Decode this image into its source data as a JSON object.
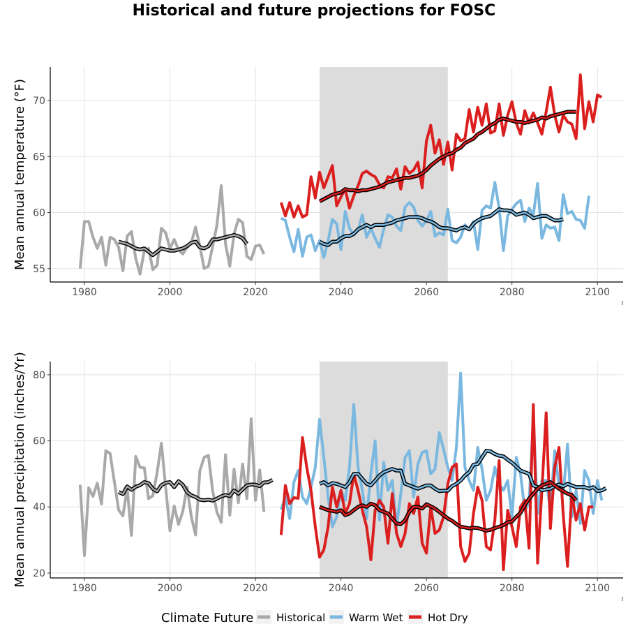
{
  "title": "Historical and future projections for FOSC",
  "colors": {
    "historical": "#A9A9A9",
    "warm_wet": "#7BB8E0",
    "hot_dry": "#DB1F1F",
    "period_shade": "#DCDCDC",
    "smooth": "#000000"
  },
  "legend": {
    "title": "Climate Future",
    "items": [
      {
        "label": "Historical",
        "color": "#A9A9A9"
      },
      {
        "label": "Warm Wet",
        "color": "#7BB8E0"
      },
      {
        "label": "Hot Dry",
        "color": "#DB1F1F"
      }
    ]
  },
  "chart_data": [
    {
      "type": "line",
      "ylabel": "Mean annual temperature (°F)",
      "xlabel": "",
      "xlim": [
        1972,
        2106
      ],
      "ylim": [
        53.8,
        73.0
      ],
      "x_ticks": [
        1980,
        2000,
        2020,
        2040,
        2060,
        2080,
        2100
      ],
      "y_ticks": [
        55,
        60,
        65,
        70
      ],
      "grid": true,
      "shaded_period": [
        2035,
        2065
      ],
      "series": [
        {
          "key": "historical",
          "name": "Historical",
          "x_start": 1979,
          "values": [
            55.0,
            59.2,
            59.2,
            57.8,
            56.8,
            57.8,
            55.3,
            57.8,
            57.6,
            56.9,
            54.8,
            57.9,
            58.3,
            55.9,
            54.5,
            56.6,
            56.8,
            54.9,
            55.3,
            58.6,
            58.2,
            56.8,
            57.6,
            56.7,
            56.3,
            56.9,
            57.3,
            58.7,
            57.0,
            55.0,
            55.2,
            57.0,
            58.9,
            62.4,
            57.2,
            55.2,
            58.1,
            59.4,
            59.1,
            56.1,
            55.8,
            57.0,
            57.1,
            56.3
          ],
          "smooth_x_start": 1988,
          "smooth": [
            57.4,
            57.3,
            57.2,
            57.0,
            56.8,
            56.7,
            56.8,
            56.5,
            56.2,
            56.5,
            56.8,
            56.7,
            56.6,
            56.6,
            56.7,
            56.8,
            57.0,
            57.3,
            57.4,
            56.9,
            56.8,
            57.0,
            57.6,
            57.6,
            57.7,
            57.8,
            57.9,
            58.0,
            57.9,
            57.7,
            57.2
          ]
        },
        {
          "key": "warm_wet",
          "name": "Warm Wet",
          "x_start": 2026,
          "values": [
            59.5,
            59.3,
            57.8,
            56.5,
            58.5,
            56.1,
            57.8,
            58.0,
            56.6,
            57.5,
            56.0,
            57.5,
            59.4,
            59.0,
            56.7,
            60.1,
            58.6,
            58.0,
            58.4,
            59.8,
            57.8,
            58.6,
            57.7,
            56.9,
            58.5,
            59.8,
            59.6,
            58.8,
            58.4,
            60.5,
            60.9,
            60.5,
            59.3,
            58.8,
            59.3,
            60.1,
            57.9,
            58.2,
            58.0,
            60.3,
            57.5,
            57.3,
            57.8,
            58.9,
            58.5,
            59.2,
            56.7,
            60.2,
            60.6,
            60.4,
            62.7,
            60.4,
            56.6,
            59.7,
            60.3,
            60.8,
            61.1,
            59.2,
            60.4,
            59.8,
            62.6,
            57.7,
            58.9,
            58.6,
            58.7,
            57.5,
            61.6,
            59.9,
            60.1,
            59.4,
            59.3,
            58.6,
            61.5
          ],
          "smooth_x_start": 2035,
          "smooth": [
            57.4,
            57.2,
            57.1,
            57.4,
            57.4,
            57.7,
            57.9,
            57.9,
            58.1,
            58.5,
            58.7,
            58.9,
            58.7,
            58.9,
            58.9,
            58.9,
            59.0,
            59.1,
            59.3,
            59.4,
            59.5,
            59.6,
            59.6,
            59.6,
            59.5,
            59.3,
            59.2,
            59.0,
            58.7,
            58.6,
            58.6,
            58.5,
            58.4,
            58.6,
            58.7,
            58.5,
            59.0,
            59.3,
            59.5,
            59.6,
            59.7,
            60.0,
            60.3,
            60.2,
            60.2,
            60.1,
            59.8,
            59.9,
            60.0,
            59.8,
            59.5,
            59.6,
            59.7,
            59.7,
            59.5,
            59.3,
            59.3,
            59.4
          ]
        },
        {
          "key": "hot_dry",
          "name": "Hot Dry",
          "x_start": 2026,
          "values": [
            60.9,
            59.7,
            60.9,
            59.6,
            60.6,
            59.6,
            59.8,
            63.2,
            61.3,
            63.6,
            62.2,
            63.2,
            64.2,
            60.6,
            61.4,
            62.1,
            60.4,
            61.5,
            62.4,
            63.5,
            63.7,
            63.4,
            63.2,
            62.5,
            62.2,
            63.2,
            63.1,
            63.9,
            62.1,
            64.1,
            63.5,
            63.8,
            64.5,
            62.2,
            66.4,
            67.8,
            65.3,
            66.5,
            64.3,
            66.3,
            63.8,
            67.0,
            66.4,
            66.6,
            69.2,
            67.2,
            69.4,
            67.8,
            69.7,
            67.1,
            67.3,
            69.7,
            66.9,
            68.7,
            69.9,
            68.0,
            67.0,
            69.1,
            68.0,
            68.9,
            68.0,
            67.0,
            69.0,
            71.2,
            68.7,
            67.2,
            68.7,
            68.1,
            67.9,
            66.6,
            72.3,
            67.5,
            69.9,
            68.1,
            70.5,
            70.3
          ],
          "smooth_x_start": 2035,
          "smooth": [
            61.0,
            61.2,
            61.4,
            61.6,
            61.7,
            61.8,
            62.1,
            62.0,
            62.0,
            61.9,
            62.0,
            62.0,
            62.1,
            62.2,
            62.3,
            62.5,
            62.7,
            62.8,
            62.9,
            63.0,
            63.1,
            63.1,
            63.2,
            63.3,
            63.5,
            63.8,
            64.2,
            64.5,
            64.8,
            65.0,
            65.2,
            65.3,
            65.6,
            65.8,
            66.2,
            66.4,
            66.6,
            67.0,
            67.2,
            67.5,
            67.8,
            68.0,
            68.3,
            68.4,
            68.3,
            68.2,
            68.1,
            68.1,
            68.0,
            68.1,
            68.2,
            68.3,
            68.5,
            68.4,
            68.6,
            68.7,
            68.8,
            68.9,
            69.0,
            69.0,
            69.0
          ]
        }
      ]
    },
    {
      "type": "line",
      "ylabel": "Mean annual precipitation (inches/Yr)",
      "xlabel": "",
      "xlim": [
        1972,
        2106
      ],
      "ylim": [
        18.5,
        84.0
      ],
      "x_ticks": [
        1980,
        2000,
        2020,
        2040,
        2060,
        2080,
        2100
      ],
      "y_ticks": [
        20,
        40,
        60,
        80
      ],
      "grid": true,
      "shaded_period": [
        2035,
        2065
      ],
      "series": [
        {
          "key": "historical",
          "name": "Historical",
          "x_start": 1979,
          "values": [
            46.7,
            25.3,
            45.8,
            43.2,
            47.2,
            40.9,
            57.0,
            56.2,
            47.6,
            39.1,
            37.3,
            45.7,
            31.4,
            55.3,
            52.0,
            51.8,
            42.5,
            43.4,
            50.4,
            59.3,
            45.9,
            32.8,
            40.3,
            34.7,
            38.6,
            46.0,
            37.0,
            31.5,
            51.0,
            55.0,
            55.6,
            44.8,
            38.4,
            35.3,
            55.8,
            37.5,
            51.4,
            41.3,
            53.0,
            42.5,
            66.7,
            42.0,
            51.2,
            38.5
          ],
          "smooth_x_start": 1988,
          "smooth": [
            44.5,
            43.9,
            46.2,
            45.2,
            46.1,
            46.6,
            47.5,
            47.2,
            45.5,
            44.7,
            46.6,
            47.3,
            47.5,
            46.0,
            47.8,
            46.7,
            44.5,
            43.5,
            43.0,
            42.2,
            42.0,
            42.2,
            41.9,
            42.5,
            43.2,
            43.6,
            43.3,
            45.0,
            44.0,
            45.3,
            46.5,
            46.8,
            46.7,
            46.3,
            47.4,
            47.5,
            48.2
          ]
        },
        {
          "key": "warm_wet",
          "name": "Warm Wet",
          "x_start": 2026,
          "values": [
            39.2,
            43.0,
            36.5,
            47.5,
            51.0,
            43.0,
            41.0,
            46.0,
            52.0,
            66.5,
            55.0,
            43.0,
            34.0,
            37.0,
            45.0,
            42.0,
            52.0,
            71.0,
            52.0,
            45.0,
            36.5,
            50.0,
            60.0,
            36.0,
            53.5,
            45.0,
            48.0,
            34.0,
            44.0,
            55.0,
            57.0,
            43.0,
            53.0,
            56.5,
            57.0,
            50.0,
            51.5,
            62.5,
            57.5,
            52.0,
            48.0,
            58.0,
            80.5,
            52.0,
            48.0,
            45.0,
            58.0,
            51.5,
            42.0,
            45.0,
            52.0,
            47.0,
            45.0,
            48.0,
            37.0,
            55.0,
            50.0,
            39.0,
            41.0,
            67.0,
            38.0,
            48.0,
            48.0,
            39.0,
            57.0,
            46.5,
            44.0,
            59.0,
            37.0,
            45.0,
            35.0,
            51.0,
            48.0,
            38.0,
            48.0,
            42.0
          ],
          "smooth_x_start": 2035,
          "smooth": [
            47.0,
            47.5,
            46.5,
            47.2,
            47.0,
            46.5,
            46.0,
            47.5,
            50.0,
            50.0,
            48.5,
            47.0,
            46.5,
            48.0,
            49.5,
            50.5,
            51.0,
            51.5,
            51.0,
            51.0,
            47.0,
            46.5,
            46.0,
            45.5,
            46.0,
            46.5,
            46.5,
            45.5,
            44.8,
            44.9,
            44.9,
            46.3,
            47.0,
            48.0,
            49.5,
            50.5,
            52.8,
            53.0,
            55.0,
            57.0,
            56.8,
            56.0,
            55.5,
            55.3,
            54.3,
            53.4,
            52.2,
            51.0,
            50.5,
            50.0,
            46.5,
            46.0,
            45.0,
            45.3,
            45.5,
            46.3,
            46.8,
            46.2,
            47.0,
            46.5,
            46.0,
            46.0,
            46.0,
            45.5,
            46.0,
            44.8,
            45.0,
            45.7
          ]
        },
        {
          "key": "hot_dry",
          "name": "Hot Dry",
          "x_start": 2026,
          "values": [
            31.5,
            46.5,
            41.0,
            42.8,
            42.6,
            61.0,
            52.0,
            45.0,
            34.0,
            24.8,
            27.0,
            34.0,
            46.0,
            40.0,
            45.0,
            38.0,
            41.0,
            50.0,
            45.0,
            39.0,
            34.0,
            24.0,
            39.0,
            42.0,
            40.0,
            29.0,
            44.0,
            32.0,
            28.0,
            32.0,
            41.0,
            38.0,
            43.0,
            29.0,
            26.0,
            40.0,
            32.0,
            33.0,
            37.0,
            47.0,
            52.0,
            53.0,
            28.0,
            23.5,
            26.0,
            38.0,
            46.0,
            42.0,
            28.0,
            27.0,
            36.0,
            54.0,
            21.0,
            39.0,
            34.0,
            28.0,
            40.0,
            42.0,
            27.5,
            71.0,
            23.0,
            45.0,
            68.5,
            33.5,
            52.0,
            58.0,
            37.5,
            22.0,
            44.0,
            36.0,
            41.0,
            33.0,
            40.0,
            40.0
          ],
          "smooth_x_start": 2035,
          "smooth": [
            40.0,
            39.5,
            39.0,
            38.8,
            38.5,
            39.0,
            37.5,
            38.0,
            39.0,
            40.0,
            40.5,
            40.0,
            41.0,
            40.5,
            39.0,
            38.5,
            38.0,
            36.5,
            35.0,
            34.8,
            36.0,
            38.5,
            40.0,
            40.0,
            39.5,
            40.8,
            40.2,
            39.5,
            38.5,
            37.5,
            36.5,
            35.8,
            34.8,
            34.0,
            33.8,
            33.5,
            33.7,
            33.6,
            33.2,
            32.8,
            33.1,
            33.6,
            34.0,
            34.5,
            35.3,
            35.6,
            37.0,
            38.2,
            40.5,
            42.5,
            44.0,
            45.5,
            46.5,
            47.0,
            47.5,
            46.5,
            45.5,
            44.8,
            44.0,
            43.5,
            42.0
          ]
        }
      ]
    }
  ]
}
